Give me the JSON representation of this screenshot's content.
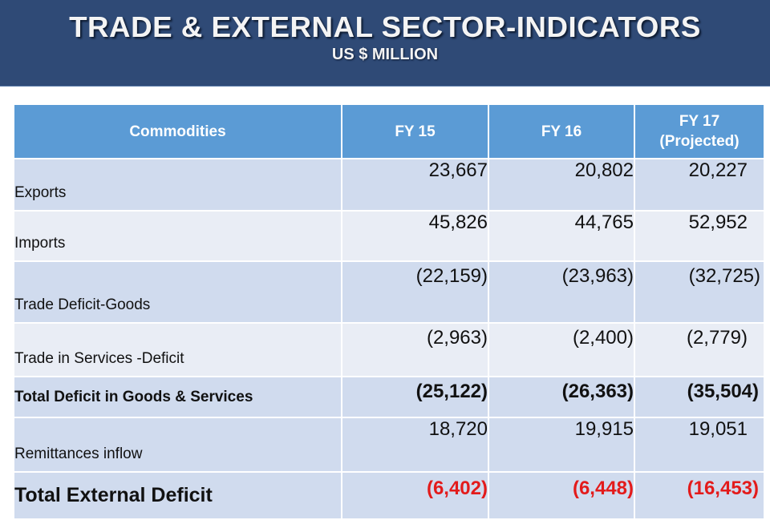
{
  "banner": {
    "title": "TRADE & EXTERNAL SECTOR-INDICATORS",
    "subtitle": "US $ MILLION"
  },
  "table": {
    "headers": [
      "Commodities",
      "FY 15",
      "FY 16",
      "FY 17\n(Projected)"
    ],
    "header_fy17_line1": "FY 17",
    "header_fy17_line2": "(Projected)",
    "rows": [
      {
        "label": "Exports",
        "values": [
          "23,667",
          "20,802",
          "20,227"
        ]
      },
      {
        "label": "Imports",
        "values": [
          "45,826",
          "44,765",
          "52,952"
        ]
      },
      {
        "label": "Trade Deficit-Goods",
        "values": [
          "(22,159)",
          "(23,963)",
          "(32,725)"
        ]
      },
      {
        "label": "Trade in Services -Deficit",
        "values": [
          "(2,963)",
          "(2,400)",
          "(2,779)"
        ]
      },
      {
        "label": "Total Deficit in Goods & Services",
        "values": [
          "(25,122)",
          "(26,363)",
          "(35,504)"
        ]
      },
      {
        "label": "Remittances inflow",
        "values": [
          "18,720",
          "19,915",
          "19,051"
        ]
      },
      {
        "label": "Total External Deficit",
        "values": [
          "(6,402)",
          "(6,448)",
          "(16,453)"
        ]
      }
    ]
  },
  "colors": {
    "banner_bg": "#2f4a76",
    "header_bg": "#5b9bd5",
    "row_dark": "#d0dbee",
    "row_light": "#e9edf5",
    "highlight_red": "#e31b1b"
  }
}
